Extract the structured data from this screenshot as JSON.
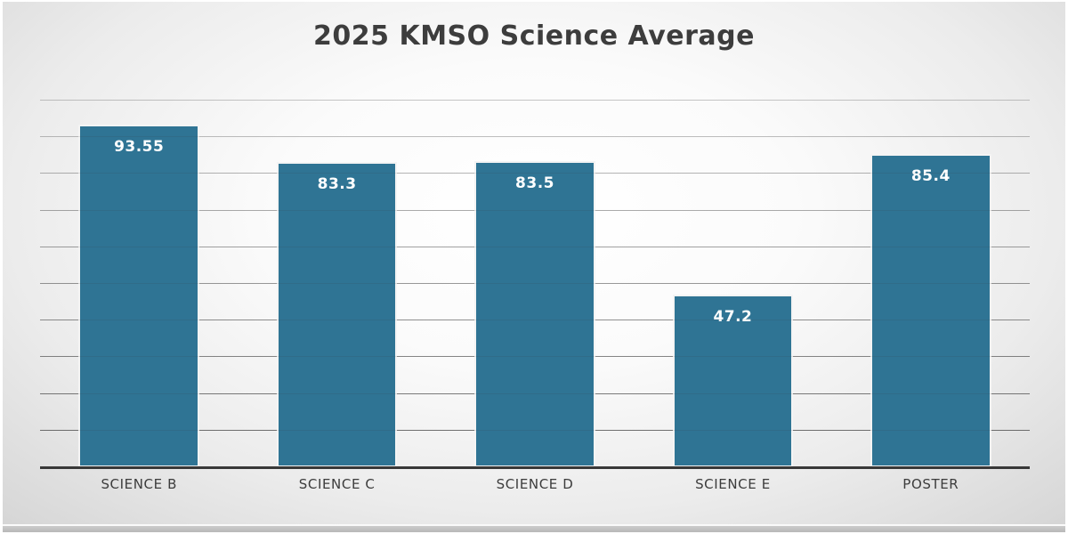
{
  "title": "2025 KMSO Science Average",
  "colors": {
    "bar": "#2f7494",
    "bar_border": "#f4f4f4",
    "bar_value_label": "#ffffff",
    "title_text": "#3d3d3d",
    "category_label": "#3c3c3c",
    "axis_line": "#383838",
    "gridline_base": "60,60,60",
    "background_center": "#ffffff",
    "background_corner": "#c7c7c7"
  },
  "chart_data": {
    "type": "bar",
    "title": "2025 KMSO Science Average",
    "categories": [
      "SCIENCE B",
      "SCIENCE C",
      "SCIENCE D",
      "SCIENCE E",
      "POSTER"
    ],
    "values": [
      93.55,
      83.3,
      83.5,
      47.2,
      85.4
    ],
    "value_labels": [
      "93.55",
      "83.3",
      "83.5",
      "47.2",
      "85.4"
    ],
    "xlabel": "",
    "ylabel": "",
    "ylim": [
      0,
      100
    ],
    "gridline_interval": 10,
    "grid": true,
    "y_tick_labels_shown": false,
    "legend": false,
    "data_labels": "inside-end",
    "background": "radial gray gradient"
  }
}
